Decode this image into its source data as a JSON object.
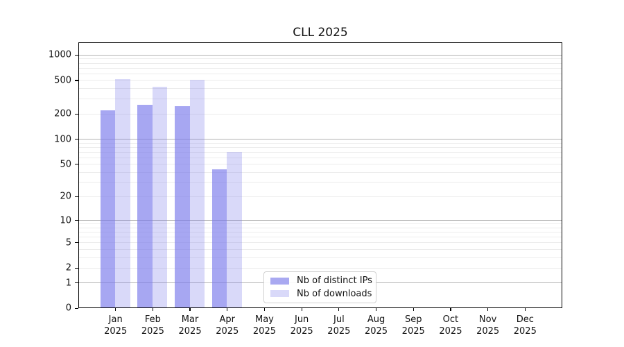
{
  "chart_data": {
    "type": "bar",
    "title": "CLL 2025",
    "xlabel": "",
    "ylabel": "",
    "yscale": "log1p",
    "ylim": [
      0,
      1430
    ],
    "yticks": [
      0,
      1,
      2,
      5,
      10,
      20,
      50,
      100,
      200,
      500,
      1000
    ],
    "major_grid_values": [
      1,
      10,
      100,
      1000
    ],
    "grid": "on",
    "legend_position": "lower center (inside plot)",
    "categories": [
      "Jan 2025",
      "Feb 2025",
      "Mar 2025",
      "Apr 2025",
      "May 2025",
      "Jun 2025",
      "Jul 2025",
      "Aug 2025",
      "Sep 2025",
      "Oct 2025",
      "Nov 2025",
      "Dec 2025"
    ],
    "series": [
      {
        "name": "Nb of distinct IPs",
        "color": "rgba(120,120,235,0.65)",
        "legend_color": "#a9a9f1",
        "values": [
          221,
          257,
          249,
          43,
          0,
          0,
          0,
          0,
          0,
          0,
          0,
          0
        ]
      },
      {
        "name": "Nb of downloads",
        "color": "rgba(120,120,235,0.28)",
        "legend_color": "#d9d9f9",
        "values": [
          522,
          423,
          508,
          70,
          0,
          0,
          0,
          0,
          0,
          0,
          0,
          0
        ]
      }
    ],
    "colors": {
      "axis": "#000000",
      "major_grid": "#b2b2b2",
      "minor_grid": "#ececec",
      "text": "#111111"
    }
  }
}
